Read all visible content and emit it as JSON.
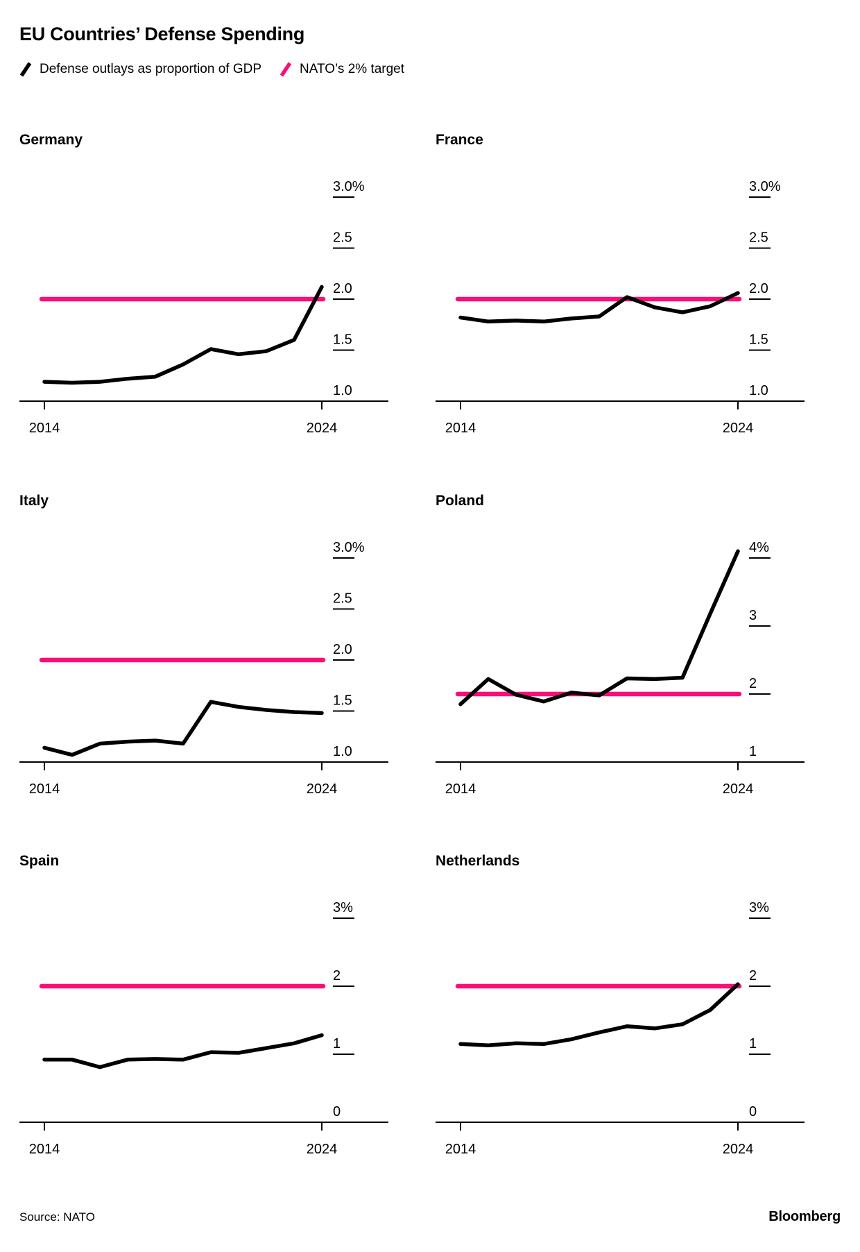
{
  "header": {
    "title": "EU Countries’ Defense Spending"
  },
  "legend": {
    "series_label": "Defense outlays as proportion of GDP",
    "target_label": "NATO’s 2% target"
  },
  "footer": {
    "source": "Source: NATO",
    "brand": "Bloomberg"
  },
  "colors": {
    "line": "#000000",
    "target": "#FA0F78"
  },
  "chart_data": [
    {
      "type": "line",
      "title": "Germany",
      "x": [
        2014,
        2015,
        2016,
        2017,
        2018,
        2019,
        2020,
        2021,
        2022,
        2023,
        2024
      ],
      "series": [
        {
          "name": "Defense outlays as proportion of GDP",
          "values": [
            1.19,
            1.18,
            1.19,
            1.22,
            1.24,
            1.36,
            1.51,
            1.46,
            1.49,
            1.6,
            2.12
          ]
        }
      ],
      "target_line": 2.0,
      "y_axis_min": 1.0,
      "y_top_tick": 3.0,
      "y_ticks": [
        {
          "v": 3.0,
          "label": "3.0%"
        },
        {
          "v": 2.5,
          "label": "2.5"
        },
        {
          "v": 2.0,
          "label": "2.0"
        },
        {
          "v": 1.5,
          "label": "1.5"
        },
        {
          "v": 1.0,
          "label": "1.0"
        }
      ],
      "x_tick_labels": [
        "2014",
        "2024"
      ]
    },
    {
      "type": "line",
      "title": "France",
      "x": [
        2014,
        2015,
        2016,
        2017,
        2018,
        2019,
        2020,
        2021,
        2022,
        2023,
        2024
      ],
      "series": [
        {
          "name": "Defense outlays as proportion of GDP",
          "values": [
            1.82,
            1.78,
            1.79,
            1.78,
            1.81,
            1.83,
            2.02,
            1.92,
            1.87,
            1.93,
            2.06
          ]
        }
      ],
      "target_line": 2.0,
      "y_axis_min": 1.0,
      "y_top_tick": 3.0,
      "y_ticks": [
        {
          "v": 3.0,
          "label": "3.0%"
        },
        {
          "v": 2.5,
          "label": "2.5"
        },
        {
          "v": 2.0,
          "label": "2.0"
        },
        {
          "v": 1.5,
          "label": "1.5"
        },
        {
          "v": 1.0,
          "label": "1.0"
        }
      ],
      "x_tick_labels": [
        "2014",
        "2024"
      ]
    },
    {
      "type": "line",
      "title": "Italy",
      "x": [
        2014,
        2015,
        2016,
        2017,
        2018,
        2019,
        2020,
        2021,
        2022,
        2023,
        2024
      ],
      "series": [
        {
          "name": "Defense outlays as proportion of GDP",
          "values": [
            1.14,
            1.07,
            1.18,
            1.2,
            1.21,
            1.18,
            1.59,
            1.54,
            1.51,
            1.49,
            1.48
          ]
        }
      ],
      "target_line": 2.0,
      "y_axis_min": 1.0,
      "y_top_tick": 3.0,
      "y_ticks": [
        {
          "v": 3.0,
          "label": "3.0%"
        },
        {
          "v": 2.5,
          "label": "2.5"
        },
        {
          "v": 2.0,
          "label": "2.0"
        },
        {
          "v": 1.5,
          "label": "1.5"
        },
        {
          "v": 1.0,
          "label": "1.0"
        }
      ],
      "x_tick_labels": [
        "2014",
        "2024"
      ]
    },
    {
      "type": "line",
      "title": "Poland",
      "x": [
        2014,
        2015,
        2016,
        2017,
        2018,
        2019,
        2020,
        2021,
        2022,
        2023,
        2024
      ],
      "series": [
        {
          "name": "Defense outlays as proportion of GDP",
          "values": [
            1.85,
            2.22,
            1.99,
            1.89,
            2.02,
            1.98,
            2.23,
            2.22,
            2.24,
            3.18,
            4.1
          ]
        }
      ],
      "target_line": 2.0,
      "y_axis_min": 1.0,
      "y_top_tick": 4.0,
      "y_ticks": [
        {
          "v": 4.0,
          "label": "4%"
        },
        {
          "v": 3.0,
          "label": "3"
        },
        {
          "v": 2.0,
          "label": "2"
        },
        {
          "v": 1.0,
          "label": "1"
        }
      ],
      "x_tick_labels": [
        "2014",
        "2024"
      ]
    },
    {
      "type": "line",
      "title": "Spain",
      "x": [
        2014,
        2015,
        2016,
        2017,
        2018,
        2019,
        2020,
        2021,
        2022,
        2023,
        2024
      ],
      "series": [
        {
          "name": "Defense outlays as proportion of GDP",
          "values": [
            0.92,
            0.92,
            0.81,
            0.92,
            0.93,
            0.92,
            1.03,
            1.02,
            1.09,
            1.16,
            1.28
          ]
        }
      ],
      "target_line": 2.0,
      "y_axis_min": 0.0,
      "y_top_tick": 3.0,
      "y_ticks": [
        {
          "v": 3.0,
          "label": "3%"
        },
        {
          "v": 2.0,
          "label": "2"
        },
        {
          "v": 1.0,
          "label": "1"
        },
        {
          "v": 0.0,
          "label": "0"
        }
      ],
      "x_tick_labels": [
        "2014",
        "2024"
      ]
    },
    {
      "type": "line",
      "title": "Netherlands",
      "x": [
        2014,
        2015,
        2016,
        2017,
        2018,
        2019,
        2020,
        2021,
        2022,
        2023,
        2024
      ],
      "series": [
        {
          "name": "Defense outlays as proportion of GDP",
          "values": [
            1.15,
            1.13,
            1.16,
            1.15,
            1.22,
            1.32,
            1.41,
            1.38,
            1.44,
            1.65,
            2.03
          ]
        }
      ],
      "target_line": 2.0,
      "y_axis_min": 0.0,
      "y_top_tick": 3.0,
      "y_ticks": [
        {
          "v": 3.0,
          "label": "3%"
        },
        {
          "v": 2.0,
          "label": "2"
        },
        {
          "v": 1.0,
          "label": "1"
        },
        {
          "v": 0.0,
          "label": "0"
        }
      ],
      "x_tick_labels": [
        "2014",
        "2024"
      ]
    }
  ]
}
